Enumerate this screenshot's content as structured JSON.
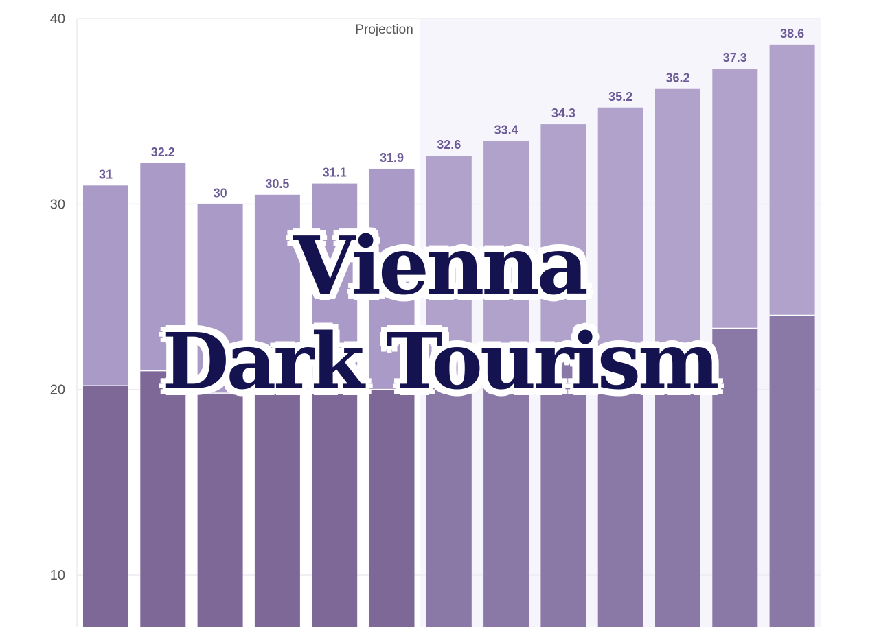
{
  "chart_data": {
    "type": "bar",
    "stacked": true,
    "categories": [
      "",
      "",
      "",
      "",
      "",
      "",
      "",
      "",
      "",
      "",
      "",
      "",
      ""
    ],
    "totals": [
      31,
      32.2,
      30,
      30.5,
      31.1,
      31.9,
      32.6,
      33.4,
      34.3,
      35.2,
      36.2,
      37.3,
      38.6
    ],
    "lower_values": [
      20.2,
      21.0,
      19.8,
      19.8,
      20.0,
      20.0,
      20.6,
      21.0,
      21.6,
      22.0,
      22.5,
      23.3,
      24.0
    ],
    "projection_start_index": 6,
    "projection_label": "Projection",
    "yticks": [
      10,
      20,
      30,
      40
    ],
    "ylim": [
      7,
      40
    ],
    "grid": true,
    "colors": {
      "lower": "#7d6897",
      "upper": "#aa9ac7",
      "lower_projection": "#8a78a6",
      "upper_projection": "#b1a2cc",
      "projection_bg": "#f7f5fc",
      "grid": "#ececf1",
      "label": "#6b5a96",
      "axis_text": "#555555"
    }
  },
  "overlay": {
    "title_line1": "Vienna",
    "title_line2": "Dark Tourism",
    "title_color": "#15134f"
  }
}
